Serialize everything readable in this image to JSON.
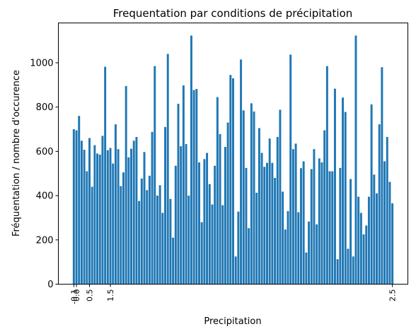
{
  "chart_data": {
    "type": "bar",
    "title": "Frequentation par conditions de précipitation",
    "xlabel": "Precipitation",
    "ylabel": "Fréquentation / nombre d'occurence",
    "ylim": [
      0,
      1180
    ],
    "yticks": [
      0,
      200,
      400,
      600,
      800,
      1000
    ],
    "x_tick_labels_legible": [
      "-0.1",
      "0.0",
      "0.5",
      "1.5",
      "2.5"
    ],
    "color": "#1f77b4",
    "grid": false,
    "values": [
      700,
      695,
      760,
      648,
      607,
      510,
      660,
      440,
      628,
      590,
      585,
      670,
      982,
      605,
      615,
      545,
      722,
      610,
      443,
      505,
      895,
      573,
      612,
      648,
      665,
      376,
      477,
      597,
      425,
      490,
      688,
      985,
      400,
      447,
      322,
      710,
      1040,
      385,
      210,
      535,
      815,
      623,
      898,
      633,
      400,
      1123,
      877,
      882,
      550,
      280,
      565,
      593,
      452,
      360,
      535,
      845,
      678,
      357,
      620,
      730,
      945,
      930,
      125,
      328,
      1015,
      785,
      525,
      253,
      817,
      780,
      413,
      705,
      593,
      530,
      548,
      658,
      548,
      480,
      665,
      788,
      418,
      247,
      330,
      1037,
      610,
      635,
      325,
      524,
      555,
      143,
      283,
      520,
      610,
      270,
      568,
      550,
      695,
      985,
      510,
      510,
      883,
      113,
      525,
      843,
      778,
      160,
      475,
      125,
      1123,
      395,
      322,
      225,
      265,
      395,
      812,
      495,
      410,
      722,
      980,
      555,
      665,
      462,
      365
    ]
  }
}
